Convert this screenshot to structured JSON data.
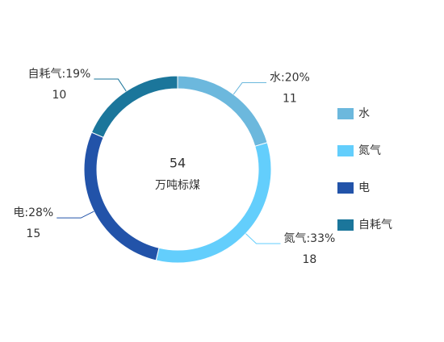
{
  "chart_data": {
    "type": "donut",
    "center_value": 54,
    "center_label": "万吨标煤",
    "categories": [
      "水",
      "氮气",
      "电",
      "自耗气"
    ],
    "values": [
      11,
      18,
      15,
      10
    ],
    "slice_labels": [
      "水:20%",
      "氮气:33%",
      "电:28%",
      "自耗气:19%"
    ],
    "colors": [
      "#6cb8dd",
      "#63cefc",
      "#2253a9",
      "#1b769b"
    ],
    "legend": "right"
  }
}
